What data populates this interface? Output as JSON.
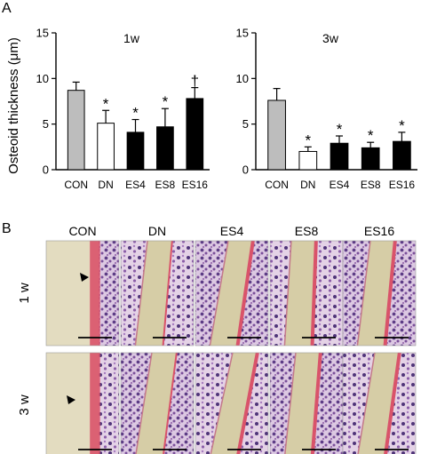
{
  "panel_labels": {
    "a": "A",
    "b": "B"
  },
  "chart_data": [
    {
      "type": "bar",
      "title": "1w",
      "ylabel": "Osteoid thickness (μm)",
      "ylim": [
        0,
        15
      ],
      "yticks": [
        "0",
        "5",
        "10",
        "15"
      ],
      "categories": [
        "CON",
        "DN",
        "ES4",
        "ES8",
        "ES16"
      ],
      "values": [
        8.7,
        5.1,
        4.1,
        4.7,
        7.8
      ],
      "errors": [
        0.9,
        1.4,
        1.4,
        2.0,
        1.2
      ],
      "annotations": [
        "",
        "*",
        "*",
        "*",
        "†"
      ],
      "colors": [
        "#bdbdbd",
        "#ffffff",
        "#000000",
        "#000000",
        "#000000"
      ]
    },
    {
      "type": "bar",
      "title": "3w",
      "ylim": [
        0,
        15
      ],
      "yticks": [
        "0",
        "5",
        "10",
        "15"
      ],
      "categories": [
        "CON",
        "DN",
        "ES4",
        "ES8",
        "ES16"
      ],
      "values": [
        7.6,
        2.0,
        2.9,
        2.4,
        3.1
      ],
      "errors": [
        1.3,
        0.5,
        0.8,
        0.6,
        1.0
      ],
      "annotations": [
        "",
        "*",
        "*",
        "*",
        "*"
      ],
      "colors": [
        "#bdbdbd",
        "#ffffff",
        "#000000",
        "#000000",
        "#000000"
      ]
    }
  ],
  "histology": {
    "columns": [
      "CON",
      "DN",
      "ES4",
      "ES8",
      "ES16"
    ],
    "rows": [
      "1 w",
      "3 w"
    ]
  }
}
